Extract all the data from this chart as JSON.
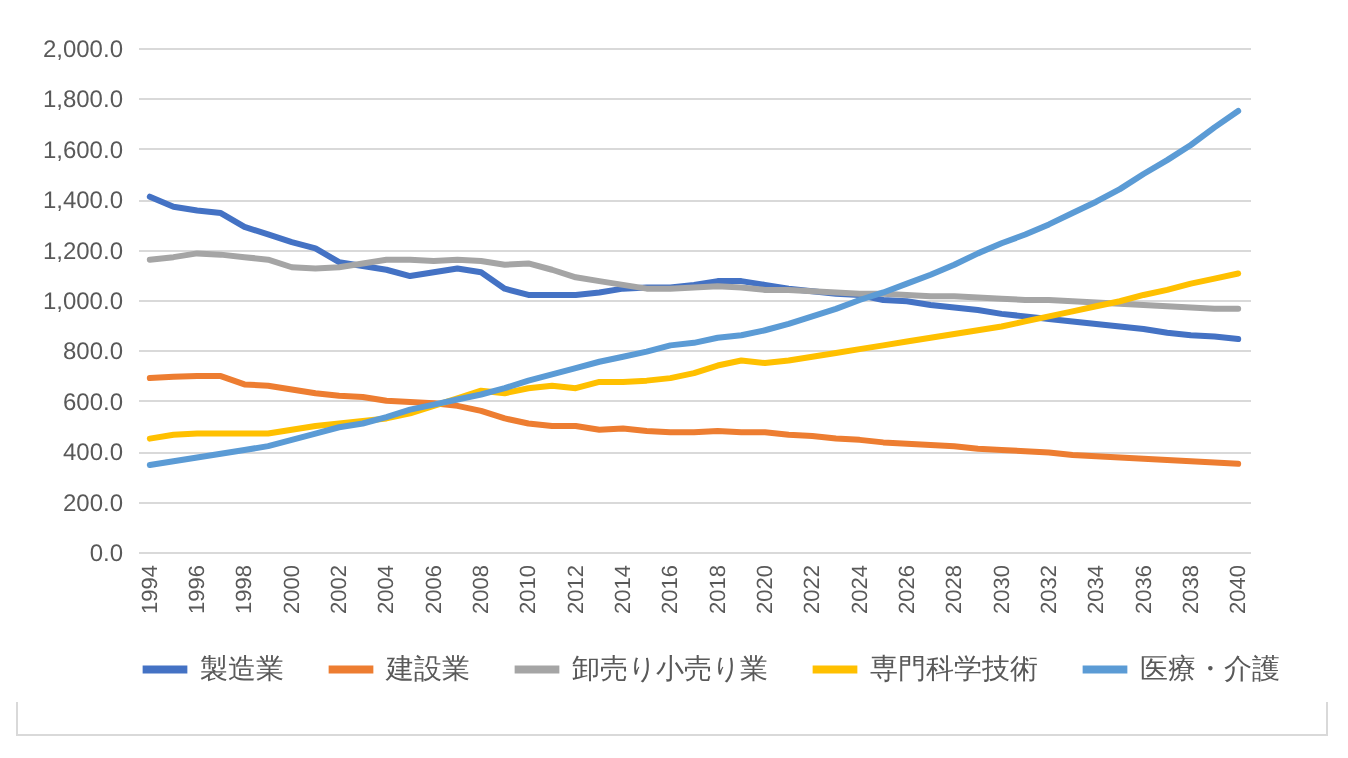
{
  "chart_data": {
    "type": "line",
    "categories": [
      "1994",
      null,
      "1996",
      null,
      "1998",
      null,
      "2000",
      null,
      "2002",
      null,
      "2004",
      null,
      "2006",
      null,
      "2008",
      null,
      "2010",
      null,
      "2012",
      null,
      "2014",
      null,
      "2016",
      null,
      "2018",
      null,
      "2020",
      null,
      "2022",
      null,
      "2024",
      null,
      "2026",
      null,
      "2028",
      null,
      "2030",
      null,
      "2032",
      null,
      "2034",
      null,
      "2036",
      null,
      "2038",
      null,
      "2040"
    ],
    "series": [
      {
        "name": "製造業",
        "color": "#4472c4",
        "values": [
          1410,
          1370,
          1355,
          1345,
          1290,
          1260,
          1230,
          1205,
          1150,
          1135,
          1120,
          1095,
          1110,
          1125,
          1110,
          1045,
          1020,
          1020,
          1020,
          1030,
          1045,
          1050,
          1050,
          1060,
          1075,
          1075,
          1060,
          1045,
          1035,
          1025,
          1020,
          1000,
          995,
          980,
          970,
          960,
          945,
          935,
          925,
          915,
          905,
          895,
          885,
          870,
          860,
          855,
          845
        ]
      },
      {
        "name": "建設業",
        "color": "#ed7d31",
        "values": [
          690,
          695,
          698,
          698,
          665,
          660,
          645,
          630,
          620,
          615,
          600,
          595,
          590,
          580,
          560,
          530,
          510,
          500,
          500,
          485,
          490,
          480,
          475,
          475,
          480,
          475,
          475,
          465,
          460,
          450,
          445,
          435,
          430,
          425,
          420,
          410,
          405,
          400,
          395,
          385,
          380,
          375,
          370,
          365,
          360,
          355,
          350
        ]
      },
      {
        "name": "卸売り小売り業",
        "color": "#a5a5a5",
        "values": [
          1160,
          1170,
          1185,
          1180,
          1170,
          1160,
          1130,
          1125,
          1130,
          1145,
          1160,
          1160,
          1155,
          1160,
          1155,
          1140,
          1145,
          1120,
          1090,
          1075,
          1060,
          1045,
          1045,
          1050,
          1055,
          1050,
          1040,
          1040,
          1035,
          1030,
          1025,
          1025,
          1020,
          1015,
          1015,
          1010,
          1005,
          1000,
          1000,
          995,
          990,
          985,
          980,
          975,
          970,
          965,
          965
        ]
      },
      {
        "name": "専門科学技術",
        "color": "#ffc000",
        "values": [
          450,
          465,
          470,
          470,
          470,
          470,
          485,
          500,
          510,
          520,
          530,
          550,
          580,
          610,
          640,
          630,
          650,
          660,
          650,
          675,
          675,
          680,
          690,
          710,
          740,
          760,
          750,
          760,
          775,
          790,
          805,
          820,
          835,
          850,
          865,
          880,
          895,
          915,
          935,
          955,
          975,
          995,
          1020,
          1040,
          1065,
          1085,
          1105
        ]
      },
      {
        "name": "医療・介護",
        "color": "#5b9bd5",
        "values": [
          345,
          360,
          375,
          390,
          405,
          420,
          445,
          470,
          495,
          510,
          535,
          565,
          585,
          605,
          625,
          650,
          680,
          705,
          730,
          755,
          775,
          795,
          820,
          830,
          850,
          860,
          880,
          905,
          935,
          965,
          1000,
          1030,
          1065,
          1100,
          1140,
          1185,
          1225,
          1260,
          1300,
          1345,
          1390,
          1440,
          1500,
          1555,
          1615,
          1685,
          1750
        ]
      }
    ],
    "ylim": [
      0,
      2000
    ],
    "yticks": [
      {
        "value": 0,
        "label": "0.0"
      },
      {
        "value": 200,
        "label": "200.0"
      },
      {
        "value": 400,
        "label": "400.0"
      },
      {
        "value": 600,
        "label": "600.0"
      },
      {
        "value": 800,
        "label": "800.0"
      },
      {
        "value": 1000,
        "label": "1,000.0"
      },
      {
        "value": 1200,
        "label": "1,200.0"
      },
      {
        "value": 1400,
        "label": "1,400.0"
      },
      {
        "value": 1600,
        "label": "1,600.0"
      },
      {
        "value": 1800,
        "label": "1,800.0"
      },
      {
        "value": 2000,
        "label": "2,000.0"
      }
    ],
    "grid": "y",
    "legend": "bottom",
    "marker": "none",
    "line_style": "solid"
  }
}
